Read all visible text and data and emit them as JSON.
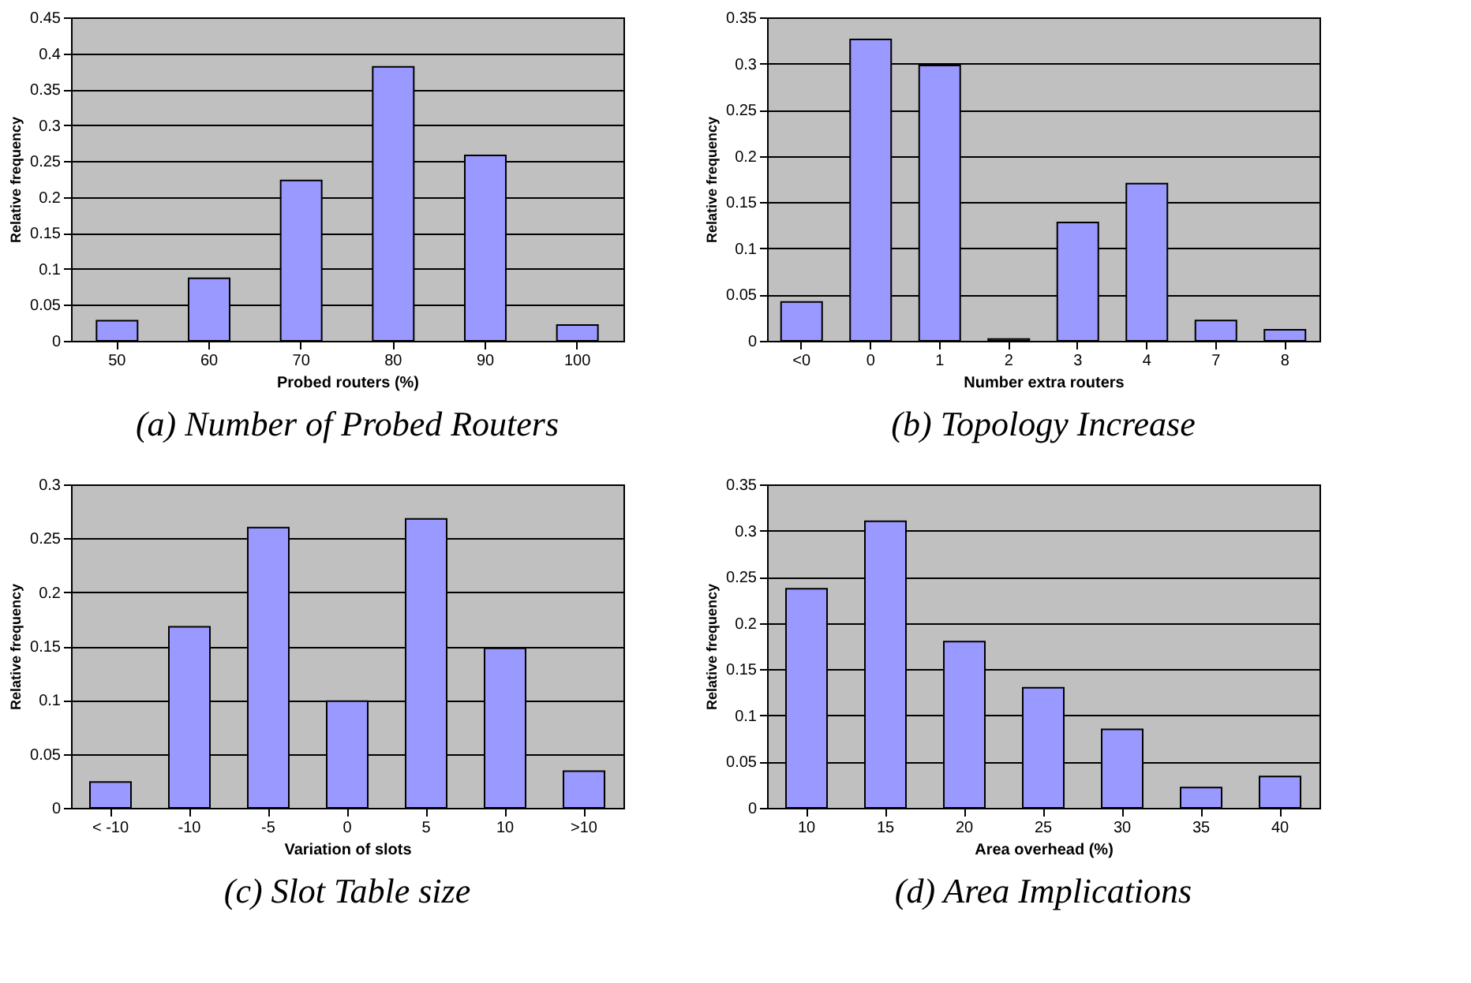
{
  "chart_data": [
    {
      "type": "bar",
      "title": "(a) Number of Probed Routers",
      "xlabel": "Probed routers (%)",
      "ylabel": "Relative frequency",
      "categories": [
        "50",
        "60",
        "70",
        "80",
        "90",
        "100"
      ],
      "values": [
        0.028,
        0.087,
        0.223,
        0.381,
        0.258,
        0.022
      ],
      "color": "#9999ff",
      "ylim": [
        0,
        0.45
      ],
      "yticks": [
        0,
        0.05,
        0.1,
        0.15,
        0.2,
        0.25,
        0.3,
        0.35,
        0.4,
        0.45
      ],
      "grid": "y"
    },
    {
      "type": "bar",
      "title": "(b) Topology Increase",
      "xlabel": "Number extra routers",
      "ylabel": "Relative frequency",
      "categories": [
        "<0",
        "0",
        "1",
        "2",
        "3",
        "4",
        "7",
        "8"
      ],
      "values": [
        0.042,
        0.326,
        0.298,
        0.002,
        0.128,
        0.17,
        0.022,
        0.012
      ],
      "color": "#9999ff",
      "ylim": [
        0,
        0.35
      ],
      "yticks": [
        0,
        0.05,
        0.1,
        0.15,
        0.2,
        0.25,
        0.3,
        0.35
      ],
      "grid": "y"
    },
    {
      "type": "bar",
      "title": "(c) Slot Table size",
      "xlabel": "Variation of slots",
      "ylabel": "Relative frequency",
      "categories": [
        "< -10",
        "-10",
        "-5",
        "0",
        "5",
        "10",
        ">10"
      ],
      "values": [
        0.024,
        0.168,
        0.26,
        0.099,
        0.268,
        0.148,
        0.034
      ],
      "color": "#9999ff",
      "ylim": [
        0,
        0.3
      ],
      "yticks": [
        0,
        0.05,
        0.1,
        0.15,
        0.2,
        0.25,
        0.3
      ],
      "grid": "y"
    },
    {
      "type": "bar",
      "title": "(d) Area Implications",
      "xlabel": "Area overhead (%)",
      "ylabel": "Relative frequency",
      "categories": [
        "10",
        "15",
        "20",
        "25",
        "30",
        "35",
        "40"
      ],
      "values": [
        0.237,
        0.31,
        0.18,
        0.13,
        0.085,
        0.022,
        0.034
      ],
      "color": "#9999ff",
      "ylim": [
        0,
        0.35
      ],
      "yticks": [
        0,
        0.05,
        0.1,
        0.15,
        0.2,
        0.25,
        0.3,
        0.35
      ],
      "grid": "y"
    }
  ]
}
